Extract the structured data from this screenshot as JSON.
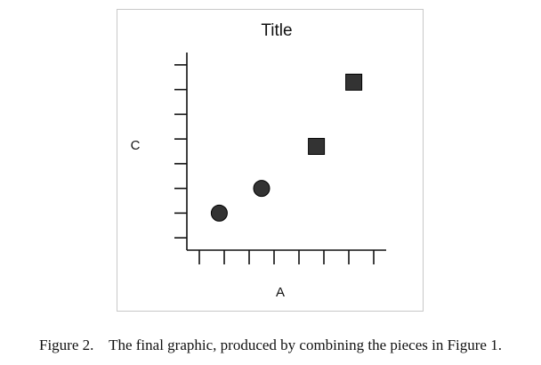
{
  "chart_data": {
    "type": "scatter",
    "title": "Title",
    "xlabel": "A",
    "ylabel": "C",
    "xlim": [
      0,
      8
    ],
    "ylim": [
      0,
      8
    ],
    "x_ticks": [
      0.5,
      1.5,
      2.5,
      3.5,
      4.5,
      5.5,
      6.5,
      7.5
    ],
    "y_ticks": [
      0.5,
      1.5,
      2.5,
      3.5,
      4.5,
      5.5,
      6.5,
      7.5
    ],
    "grid": false,
    "series": [
      {
        "marker": "circle",
        "color": "#333333",
        "points": [
          {
            "x": 1.3,
            "y": 1.5
          },
          {
            "x": 3.0,
            "y": 2.5
          }
        ]
      },
      {
        "marker": "square",
        "color": "#333333",
        "points": [
          {
            "x": 5.2,
            "y": 4.2
          },
          {
            "x": 6.7,
            "y": 6.8
          }
        ]
      }
    ]
  },
  "caption": {
    "label": "Figure 2.",
    "text": "The final graphic, produced by combining the pieces in Figure 1."
  }
}
